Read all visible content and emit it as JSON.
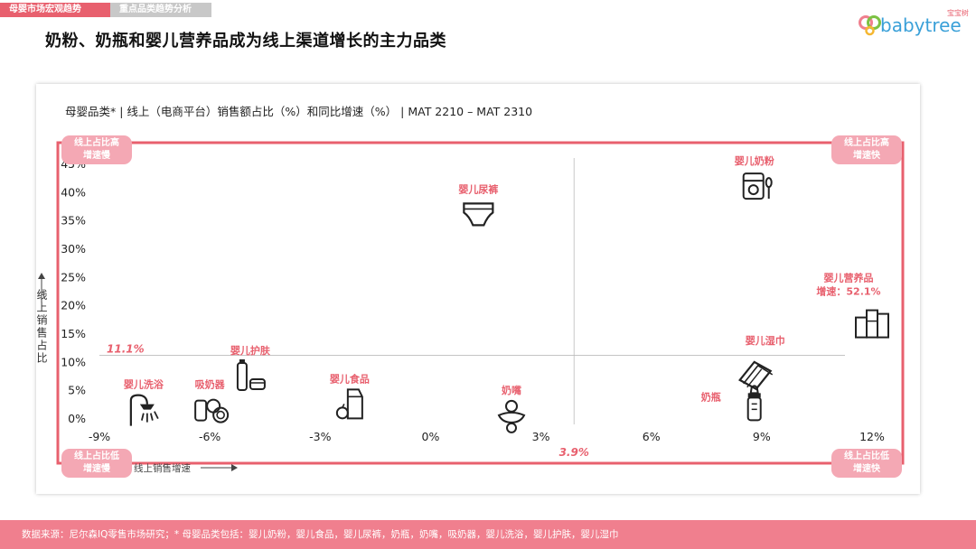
{
  "nav": {
    "tab_market": "母婴市场宏观趋势",
    "tab_category": "重点品类趋势分析"
  },
  "logo": {
    "brand": "babytree",
    "brand_cn": "宝宝树"
  },
  "page_title": "奶粉、奶瓶和婴儿营养品成为线上渠道增长的主力品类",
  "chart_subtitle": "母婴品类* | 线上（电商平台）销售额占比（%）和同比增速（%） | MAT 2210 – MAT 2310",
  "quadrants": {
    "top_left": [
      "线上占比高",
      "增速慢"
    ],
    "top_right": [
      "线上占比高",
      "增速快"
    ],
    "bottom_left": [
      "线上占比低",
      "增速慢"
    ],
    "bottom_right": [
      "线上占比低",
      "增速快"
    ]
  },
  "colors": {
    "accent": "#e8606e",
    "quad_fill": "#f4a8b4",
    "footer": "#f07f8e"
  },
  "chart_data": {
    "type": "scatter",
    "xlabel": "线上销售增速",
    "ylabel": "线上销售占比",
    "xlim": [
      -9,
      12
    ],
    "ylim": [
      0,
      45
    ],
    "x_ticks": [
      "-9%",
      "-6%",
      "-3%",
      "0%",
      "3%",
      "6%",
      "9%",
      "12%"
    ],
    "y_ticks": [
      "0%",
      "5%",
      "10%",
      "15%",
      "20%",
      "25%",
      "30%",
      "35%",
      "40%",
      "45%"
    ],
    "ref_x": 3.9,
    "ref_x_label": "3.9%",
    "ref_y": 11.1,
    "ref_y_label": "11.1%",
    "points": [
      {
        "name": "婴儿奶粉",
        "x": 8.8,
        "y": 41,
        "icon": "formula-can-icon"
      },
      {
        "name": "婴儿尿裤",
        "x": 1.3,
        "y": 36,
        "icon": "diaper-icon"
      },
      {
        "name": "婴儿营养品",
        "x": 12.0,
        "y": 16.5,
        "icon": "nutrition-products-icon",
        "note": "增速：52.1%"
      },
      {
        "name": "婴儿湿巾",
        "x": 8.8,
        "y": 8,
        "icon": "wet-wipes-icon"
      },
      {
        "name": "奶瓶",
        "x": 8.8,
        "y": 2.5,
        "icon": "baby-bottle-icon"
      },
      {
        "name": "婴儿护肤",
        "x": -4.9,
        "y": 7.5,
        "icon": "skincare-icon"
      },
      {
        "name": "婴儿洗浴",
        "x": -7.8,
        "y": 1.5,
        "icon": "shower-icon"
      },
      {
        "name": "吸奶器",
        "x": -6.0,
        "y": 1.5,
        "icon": "breast-pump-icon"
      },
      {
        "name": "婴儿食品",
        "x": -2.2,
        "y": 2.5,
        "icon": "baby-food-icon"
      },
      {
        "name": "奶嘴",
        "x": 2.2,
        "y": 0.5,
        "icon": "pacifier-icon"
      }
    ]
  },
  "footer": "数据来源：尼尔森IQ零售市场研究；* 母婴品类包括：婴儿奶粉，婴儿食品，婴儿尿裤，奶瓶，奶嘴，吸奶器，婴儿洗浴，婴儿护肤，婴儿湿巾"
}
